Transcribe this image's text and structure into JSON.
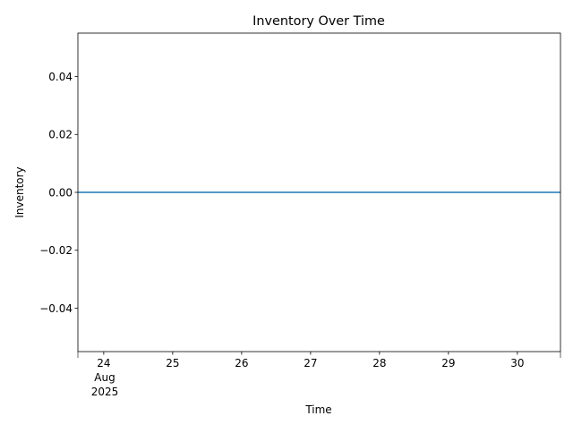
{
  "chart_data": {
    "type": "line",
    "title": "Inventory Over Time",
    "xlabel": "Time",
    "ylabel": "Inventory",
    "x_tick_labels": [
      "24",
      "25",
      "26",
      "27",
      "28",
      "29",
      "30"
    ],
    "x_offset_labels": [
      "Aug",
      "2025"
    ],
    "x_ticks": [
      "2025-08-24",
      "2025-08-25",
      "2025-08-26",
      "2025-08-27",
      "2025-08-28",
      "2025-08-29",
      "2025-08-30"
    ],
    "x_minor_ticks": [
      "2025-08-23 15:00",
      "2025-08-30 15:00"
    ],
    "xlim": [
      "2025-08-23 15:00",
      "2025-08-30 15:00"
    ],
    "ylim": [
      -0.055,
      0.055
    ],
    "y_ticks": [
      -0.04,
      -0.02,
      0.0,
      0.02,
      0.04
    ],
    "y_tick_labels": [
      "−0.04",
      "−0.02",
      "0.00",
      "0.02",
      "0.04"
    ],
    "grid": false,
    "series": [
      {
        "color": "#1f77b4",
        "x": [
          "2025-08-23 15:00",
          "2025-08-30 15:00"
        ],
        "values": [
          0,
          0
        ]
      }
    ]
  }
}
